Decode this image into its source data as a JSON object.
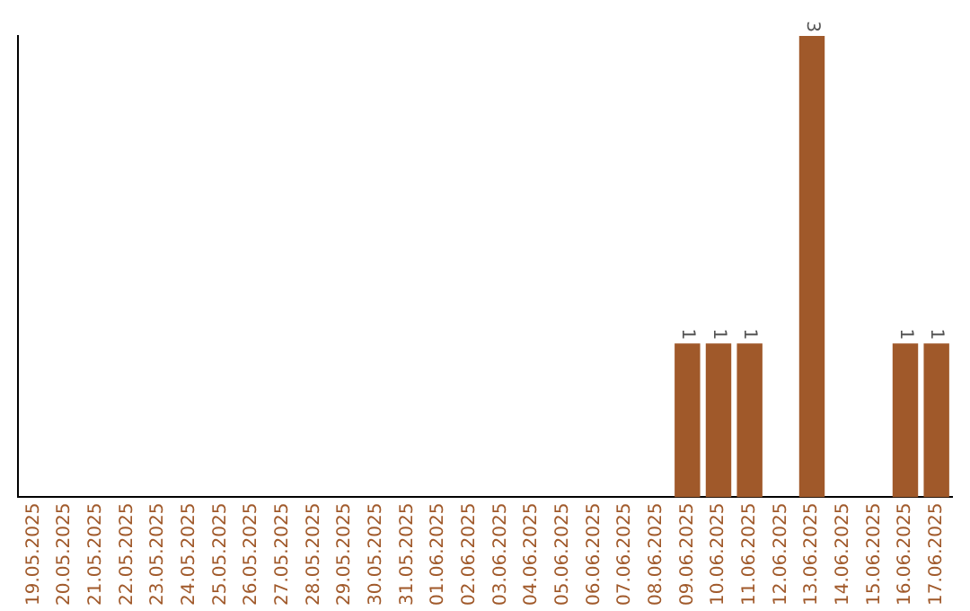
{
  "chart_data": {
    "type": "bar",
    "categories": [
      "19.05.2025",
      "20.05.2025",
      "21.05.2025",
      "22.05.2025",
      "23.05.2025",
      "24.05.2025",
      "25.05.2025",
      "26.05.2025",
      "27.05.2025",
      "28.05.2025",
      "29.05.2025",
      "30.05.2025",
      "31.05.2025",
      "01.06.2025",
      "02.06.2025",
      "03.06.2025",
      "04.06.2025",
      "05.06.2025",
      "06.06.2025",
      "07.06.2025",
      "08.06.2025",
      "09.06.2025",
      "10.06.2025",
      "11.06.2025",
      "12.06.2025",
      "13.06.2025",
      "14.06.2025",
      "15.06.2025",
      "16.06.2025",
      "17.06.2025"
    ],
    "values": [
      null,
      null,
      null,
      null,
      null,
      null,
      null,
      null,
      null,
      null,
      null,
      null,
      null,
      null,
      null,
      null,
      null,
      null,
      null,
      null,
      null,
      1,
      1,
      1,
      null,
      3,
      null,
      null,
      1,
      1
    ],
    "data_labels": true,
    "color": "#a0592a"
  }
}
